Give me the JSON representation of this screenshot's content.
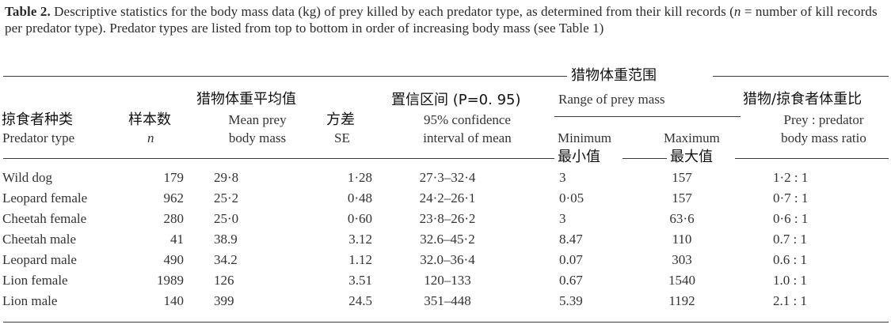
{
  "caption": {
    "label": "Table 2.",
    "text_before_n": "Descriptive statistics for the body mass data (kg) of prey killed by each predator type, as determined from their kill records (",
    "n_symbol": "n",
    "text_after_n": " = number of kill records per predator type). Predator types are listed from top to bottom in order of increasing body mass (see Table 1)"
  },
  "headers": {
    "predator_zh": "掠食者种类",
    "predator_en": "Predator type",
    "n_zh": "样本数",
    "n_en": "n",
    "mean_zh": "猎物体重平均值",
    "mean_en_1": "Mean prey",
    "mean_en_2": "body mass",
    "se_zh": "方差",
    "se_en": "SE",
    "ci_zh": "置信区间 (P=0. 95)",
    "ci_en_1": "95% confidence",
    "ci_en_2": "interval of mean",
    "range_zh": "猎物体重范围",
    "range_en": "Range of prey mass",
    "min_en": "Minimum",
    "min_zh": "最小值",
    "max_en": "Maximum",
    "max_zh": "最大值",
    "ratio_zh": "猎物/掠食者体重比",
    "ratio_en_1": "Prey : predator",
    "ratio_en_2": "body mass ratio"
  },
  "rows": [
    {
      "predator": "Wild dog",
      "n": "179",
      "mean": "29·8",
      "se": "1·28",
      "ci": "27·3–32·4",
      "min": "3",
      "max": "157",
      "ratio": "1·2 : 1"
    },
    {
      "predator": "Leopard female",
      "n": "962",
      "mean": "25·2",
      "se": "0·48",
      "ci": "24·2–26·1",
      "min": "0·05",
      "max": "157",
      "ratio": "0·7 : 1"
    },
    {
      "predator": "Cheetah female",
      "n": "280",
      "mean": "25·0",
      "se": "0·60",
      "ci": "23·8–26·2",
      "min": "3",
      "max": "63·6",
      "ratio": "0·6 : 1"
    },
    {
      "predator": "Cheetah male",
      "n": "41",
      "mean": "38.9",
      "se": "3.12",
      "ci": "32.6–45·2",
      "min": "8.47",
      "max": "110",
      "ratio": "0.7 : 1"
    },
    {
      "predator": "Leopard male",
      "n": "490",
      "mean": "34.2",
      "se": "1.12",
      "ci": "32.0–36·4",
      "min": "0.07",
      "max": "303",
      "ratio": "0.6 : 1"
    },
    {
      "predator": "Lion female",
      "n": "1989",
      "mean": "126",
      "se": "3.51",
      "ci": "120–133",
      "min": "0.67",
      "max": "1540",
      "ratio": "1.0 : 1"
    },
    {
      "predator": "Lion male",
      "n": "140",
      "mean": "399",
      "se": "24.5",
      "ci": "351–448",
      "min": "5.39",
      "max": "1192",
      "ratio": "2.1 : 1"
    }
  ]
}
